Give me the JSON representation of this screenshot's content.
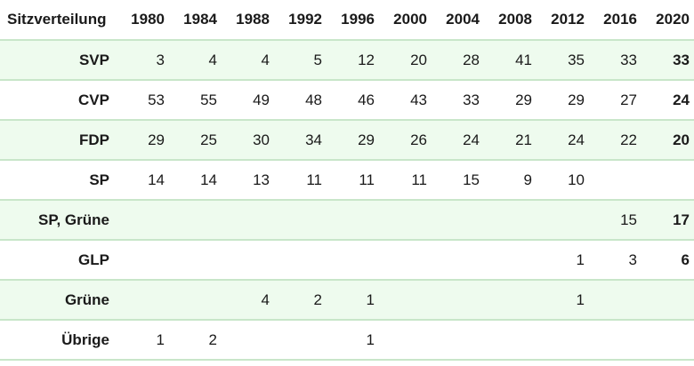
{
  "table": {
    "corner_label": "Sitzverteilung",
    "years": [
      "1980",
      "1984",
      "1988",
      "1992",
      "1996",
      "2000",
      "2004",
      "2008",
      "2012",
      "2016",
      "2020"
    ],
    "rows": [
      {
        "party": "SVP",
        "values": [
          "3",
          "4",
          "4",
          "5",
          "12",
          "20",
          "28",
          "41",
          "35",
          "33",
          "33"
        ]
      },
      {
        "party": "CVP",
        "values": [
          "53",
          "55",
          "49",
          "48",
          "46",
          "43",
          "33",
          "29",
          "29",
          "27",
          "24"
        ]
      },
      {
        "party": "FDP",
        "values": [
          "29",
          "25",
          "30",
          "34",
          "29",
          "26",
          "24",
          "21",
          "24",
          "22",
          "20"
        ]
      },
      {
        "party": "SP",
        "values": [
          "14",
          "14",
          "13",
          "11",
          "11",
          "11",
          "15",
          "9",
          "10",
          "",
          ""
        ]
      },
      {
        "party": "SP, Grüne",
        "values": [
          "",
          "",
          "",
          "",
          "",
          "",
          "",
          "",
          "",
          "15",
          "17"
        ]
      },
      {
        "party": "GLP",
        "values": [
          "",
          "",
          "",
          "",
          "",
          "",
          "",
          "",
          "1",
          "3",
          "6"
        ]
      },
      {
        "party": "Grüne",
        "values": [
          "",
          "",
          "4",
          "2",
          "1",
          "",
          "",
          "",
          "1",
          "",
          ""
        ]
      },
      {
        "party": "Übrige",
        "values": [
          "1",
          "2",
          "",
          "",
          "1",
          "",
          "",
          "",
          "",
          "",
          ""
        ]
      }
    ]
  },
  "colors": {
    "row_shade": "#eefbee",
    "row_divider": "#c8e6c9"
  }
}
